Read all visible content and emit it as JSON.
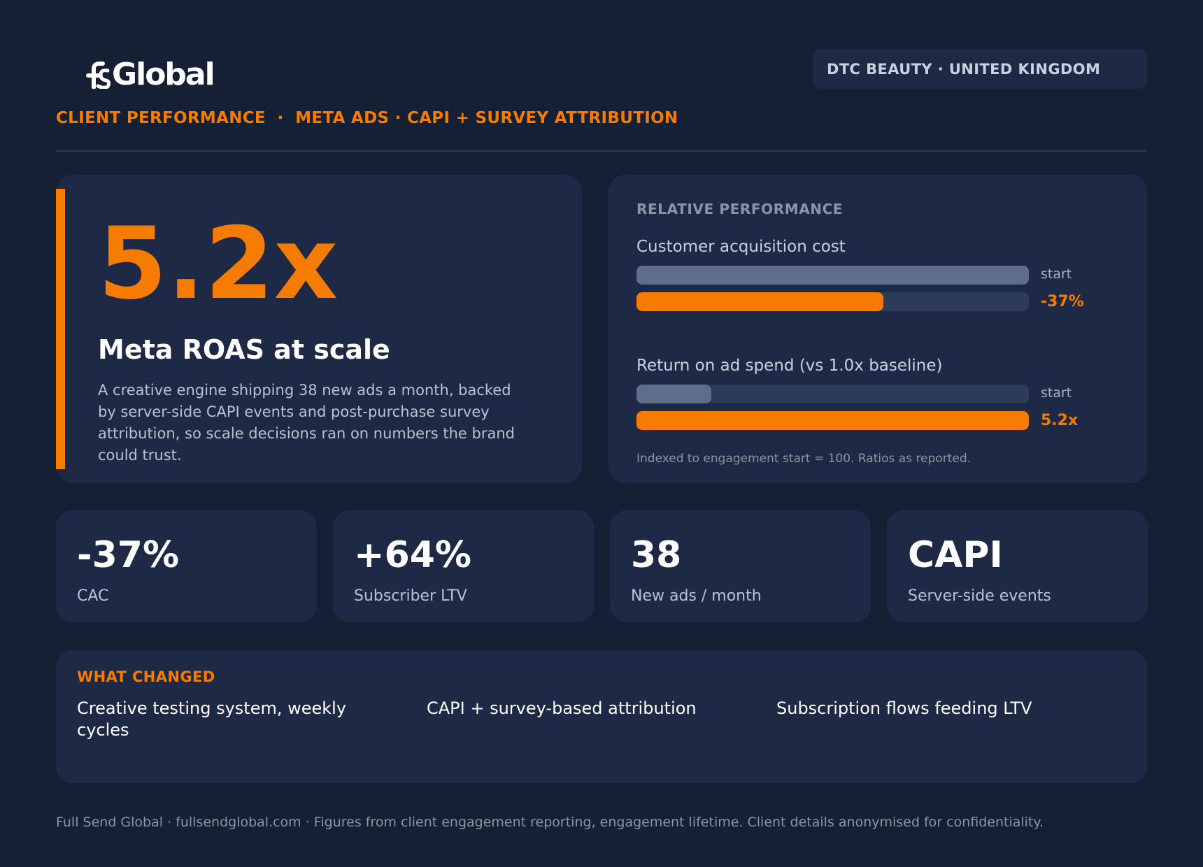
{
  "header": {
    "logo_text": "Global",
    "tagline": "CLIENT PERFORMANCE  ·  META ADS · CAPI + SURVEY ATTRIBUTION",
    "region_badge": "DTC BEAUTY · UNITED KINGDOM"
  },
  "hero": {
    "value": "5.2x",
    "title": "Meta ROAS at scale",
    "description": "A creative engine shipping 38 new ads a month, backed by server-side CAPI events and post-purchase survey attribution, so scale decisions ran on numbers the brand could trust."
  },
  "relative_performance": {
    "heading": "RELATIVE PERFORMANCE",
    "metrics": [
      {
        "label": "Customer acquisition cost",
        "start_label": "start",
        "start_fill": 1.0,
        "now_fill": 0.63,
        "now_label": "-37%"
      },
      {
        "label": "Return on ad spend (vs 1.0x baseline)",
        "start_label": "start",
        "start_fill": 0.19,
        "now_fill": 1.0,
        "now_label": "5.2x"
      }
    ],
    "note": "Indexed to engagement start = 100. Ratios as reported."
  },
  "stats": [
    {
      "value": "-37%",
      "label": "CAC"
    },
    {
      "value": "+64%",
      "label": "Subscriber LTV"
    },
    {
      "value": "38",
      "label": "New ads / month"
    },
    {
      "value": "CAPI",
      "label": "Server-side events"
    }
  ],
  "what_changed": {
    "heading": "WHAT CHANGED",
    "items": [
      "Creative testing system, weekly cycles",
      "CAPI + survey-based attribution",
      "Subscription flows feeding LTV"
    ]
  },
  "footer": {
    "text": "Full Send Global · fullsendglobal.com · Figures from client engagement reporting, engagement lifetime. Client details anonymised for confidentiality."
  },
  "colors": {
    "background": "#162035",
    "card": "#1e2a45",
    "accent": "#f57c00",
    "bar_start": "#5f6d8b",
    "bar_track": "#2e3b58"
  }
}
